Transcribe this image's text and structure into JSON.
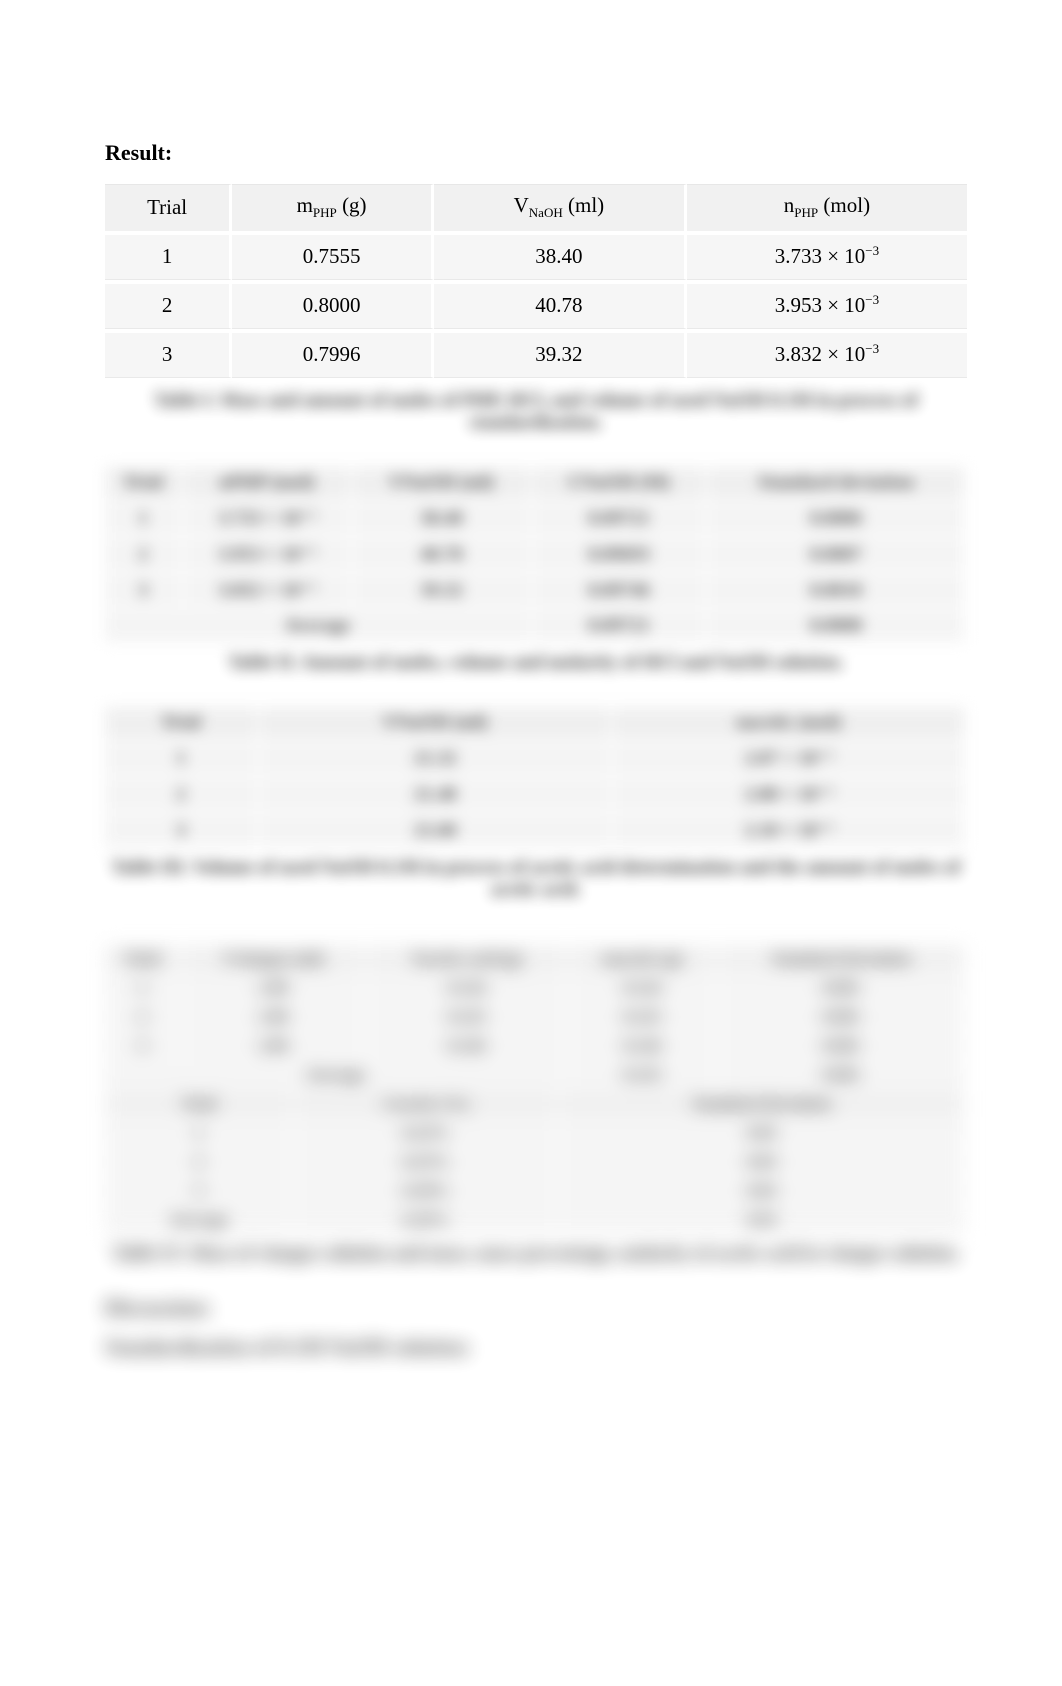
{
  "result_label": "Result:",
  "table1": {
    "headers": {
      "trial": "Trial",
      "m_php_html": "m<span class=\"sub\">PHP</span> (g)",
      "v_naoh_html": "V<span class=\"sub\">NaOH</span> (ml)",
      "n_php_html": "n<span class=\"sub\">PHP</span> (mol)"
    },
    "rows": [
      {
        "trial": "1",
        "m": "0.7555",
        "v": "38.40",
        "n_html": "3.733 × 10<span class=\"sup\">−3</span>"
      },
      {
        "trial": "2",
        "m": "0.8000",
        "v": "40.78",
        "n_html": "3.953 × 10<span class=\"sup\">−3</span>"
      },
      {
        "trial": "3",
        "m": "0.7996",
        "v": "39.32",
        "n_html": "3.832 × 10<span class=\"sup\">−3</span>"
      }
    ],
    "caption": "Table I. Mass and amount of moles of PHP, HCl, and volume of used NaOH 0.1M in process of standardization."
  },
  "table2": {
    "headers": [
      "Trial",
      "nPHP (mol)",
      "VNaOH (ml)",
      "CNaOH (M)",
      "Standard deviation"
    ],
    "rows": [
      [
        "1",
        "3.733 × 10⁻³",
        "38.40",
        "0.09721",
        "0.0006"
      ],
      [
        "2",
        "3.953 × 10⁻³",
        "40.78",
        "0.09693",
        "0.0007"
      ],
      [
        "3",
        "3.832 × 10⁻³",
        "39.32",
        "0.09746",
        "0.0010"
      ]
    ],
    "footer": [
      "Average",
      "",
      "",
      "0.09721",
      "0.0008"
    ],
    "caption": "Table II. Amount of moles, volume and molarity of HCl and NaOH solution."
  },
  "table3": {
    "headers": [
      "Trial",
      "VNaOH (ml)",
      "nacetic (mol)"
    ],
    "rows": [
      [
        "1",
        "21.32",
        "2.07 × 10⁻³"
      ],
      [
        "2",
        "21.48",
        "2.08 × 10⁻³"
      ],
      [
        "3",
        "21.60",
        "2.10 × 10⁻³"
      ]
    ],
    "caption": "Table III. Volume of used NaOH 0.1M in process of acetic acid determination and the amount of moles of acetic acid."
  },
  "table4a": {
    "headers": [
      "Trial",
      "Vvinegar (ml)",
      "Vacetic acid (g)",
      "macetic (g)",
      "Standard deviation"
    ],
    "rows": [
      [
        "1",
        "2.00",
        "0.124",
        "0.124",
        "0.001"
      ],
      [
        "2",
        "2.00",
        "0.125",
        "0.125",
        "0.001"
      ],
      [
        "3",
        "2.00",
        "0.126",
        "0.126",
        "0.001"
      ]
    ],
    "footer": [
      "Average",
      "",
      "",
      "0.125",
      "0.001"
    ]
  },
  "table4b": {
    "headers": [
      "Trial",
      "Cacetic (%)",
      "Standard deviation"
    ],
    "rows": [
      [
        "1",
        "6.22%",
        "0.03"
      ],
      [
        "2",
        "6.25%",
        "0.03"
      ],
      [
        "3",
        "6.30%",
        "0.03"
      ]
    ],
    "footer": [
      "Average",
      "6.26%",
      "0.03"
    ]
  },
  "table4_caption": "Table IV. Mass of vinegar solution and mass, mass percentage, molarity of acetic acid in vinegar solution.",
  "discussion_heading": "Discussion:",
  "discussion_line": "Standardization of 0.1M NaOH solution:"
}
